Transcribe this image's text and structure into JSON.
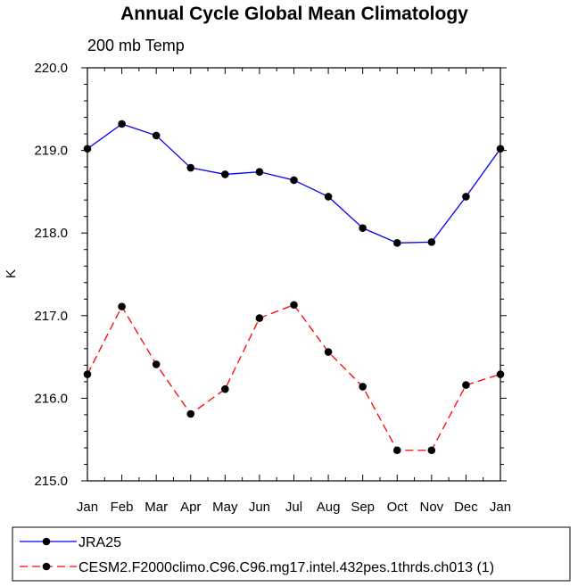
{
  "chart_data": {
    "type": "line",
    "title": "Annual Cycle Global Mean Climatology",
    "subtitle": "200 mb Temp",
    "xlabel": "",
    "ylabel": "K",
    "categories": [
      "Jan",
      "Feb",
      "Mar",
      "Apr",
      "May",
      "Jun",
      "Jul",
      "Aug",
      "Sep",
      "Oct",
      "Nov",
      "Dec",
      "Jan"
    ],
    "ylim": [
      215.0,
      220.0
    ],
    "yticks": [
      "215.0",
      "216.0",
      "217.0",
      "218.0",
      "219.0",
      "220.0"
    ],
    "grid": false,
    "legend_position": "bottom",
    "series": [
      {
        "name": "JRA25",
        "color": "#0000ff",
        "dash": "solid",
        "values": [
          219.02,
          219.32,
          219.18,
          218.79,
          218.71,
          218.74,
          218.64,
          218.44,
          218.06,
          217.88,
          217.89,
          218.44,
          219.02
        ]
      },
      {
        "name": "CESM2.F2000climo.C96.C96.mg17.intel.432pes.1thrds.ch013 (1)",
        "color": "#ff0000",
        "dash": "dashed",
        "values": [
          216.29,
          217.11,
          216.41,
          215.81,
          216.11,
          216.97,
          217.13,
          216.56,
          216.14,
          215.37,
          215.37,
          216.16,
          216.29
        ]
      }
    ]
  }
}
